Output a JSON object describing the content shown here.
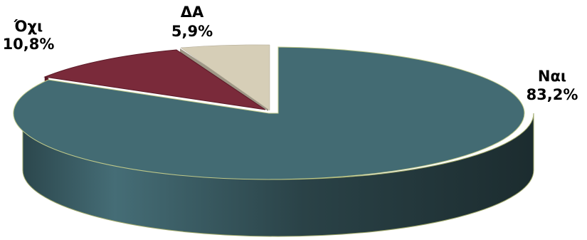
{
  "chart_data": {
    "type": "pie",
    "style": "3d",
    "exploded": true,
    "title": "",
    "slices": [
      {
        "label": "Ναι",
        "value": 83.2,
        "value_label": "83,2%",
        "color": "#436B73"
      },
      {
        "label": "Όχι",
        "value": 10.8,
        "value_label": "10,8%",
        "color": "#7A2A3A"
      },
      {
        "label": "ΔΑ",
        "value": 5.9,
        "value_label": "5,9%",
        "color": "#D6CEB7"
      }
    ]
  }
}
